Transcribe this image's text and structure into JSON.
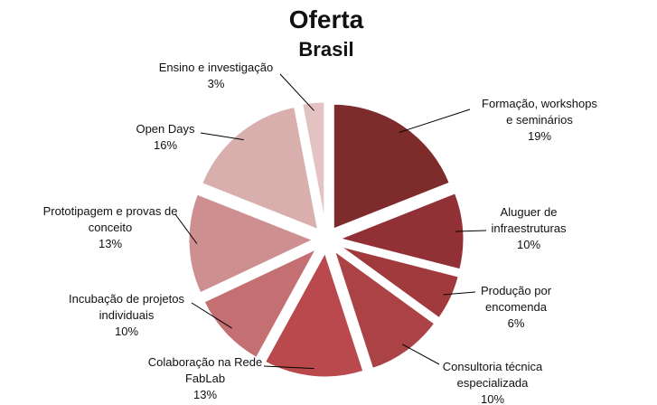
{
  "chart_data": {
    "type": "pie",
    "title": "Oferta",
    "subtitle": "Brasil",
    "slices": [
      {
        "label_lines": [
          "Formação, workshops",
          "e seminários"
        ],
        "value_label": "19%",
        "value": 19,
        "color": "#7E2B2C"
      },
      {
        "label_lines": [
          "Aluguer de",
          "infraestruturas"
        ],
        "value_label": "10%",
        "value": 10,
        "color": "#923135"
      },
      {
        "label_lines": [
          "Produção por",
          "encomenda"
        ],
        "value_label": "6%",
        "value": 6,
        "color": "#A13A3D"
      },
      {
        "label_lines": [
          "Consultoria técnica",
          "especializada"
        ],
        "value_label": "10%",
        "value": 10,
        "color": "#AB4245"
      },
      {
        "label_lines": [
          "Colaboração na Rede",
          "FabLab"
        ],
        "value_label": "13%",
        "value": 13,
        "color": "#B9494C"
      },
      {
        "label_lines": [
          "Incubação de projetos",
          "individuais"
        ],
        "value_label": "10%",
        "value": 10,
        "color": "#C46F72"
      },
      {
        "label_lines": [
          "Prototipagem e provas de",
          "conceito"
        ],
        "value_label": "13%",
        "value": 13,
        "color": "#CE8F90"
      },
      {
        "label_lines": [
          "Open Days"
        ],
        "value_label": "16%",
        "value": 16,
        "color": "#D9AFAE"
      },
      {
        "label_lines": [
          "Ensino e investigação"
        ],
        "value_label": "3%",
        "value": 3,
        "color": "#E2C3C2"
      }
    ]
  }
}
